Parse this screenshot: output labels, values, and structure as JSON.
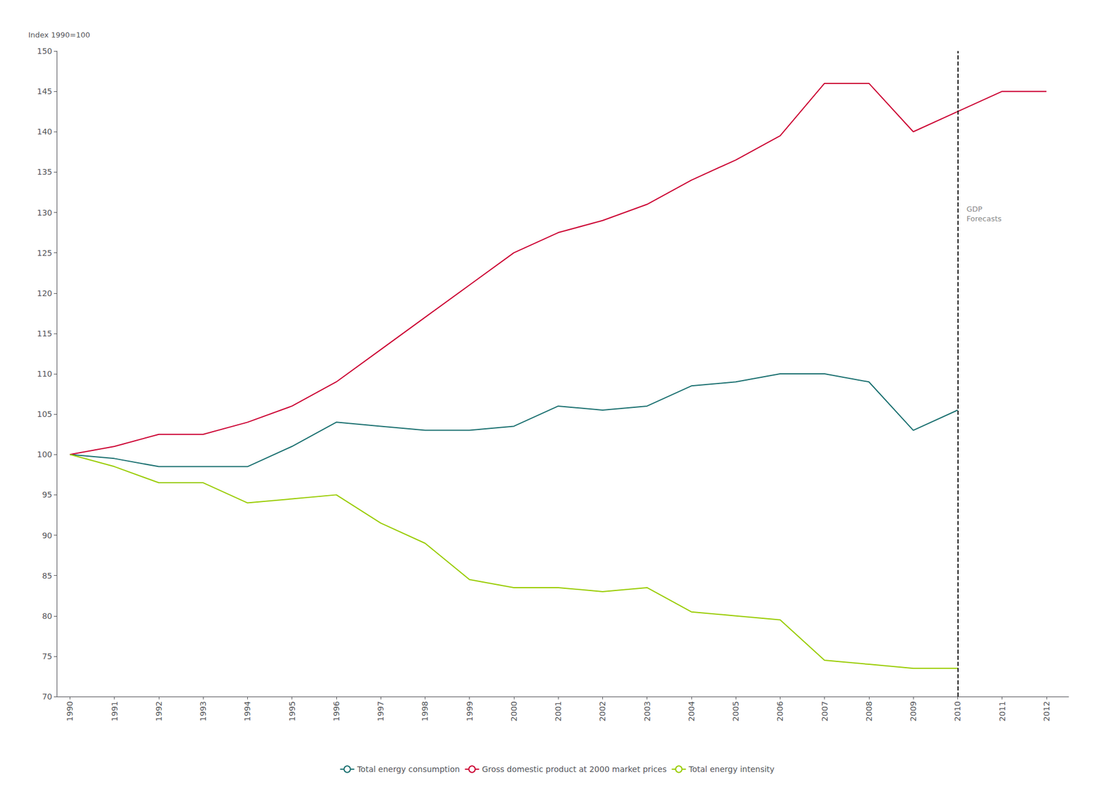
{
  "chart_data": {
    "type": "line",
    "y_label": "Index 1990=100",
    "x": [
      1990,
      1991,
      1992,
      1993,
      1994,
      1995,
      1996,
      1997,
      1998,
      1999,
      2000,
      2001,
      2002,
      2003,
      2004,
      2005,
      2006,
      2007,
      2008,
      2009,
      2010,
      2011,
      2012
    ],
    "series": [
      {
        "name": "Total energy consumption",
        "color": "#1a7070",
        "values": [
          100,
          99.5,
          98.5,
          98.5,
          98.5,
          101,
          104,
          103.5,
          103,
          103,
          103.5,
          106,
          105.5,
          106,
          108.5,
          109,
          110,
          110,
          109,
          103,
          105.5,
          null,
          null
        ]
      },
      {
        "name": "Gross domestic product at 2000 market prices",
        "color": "#cc0033",
        "values": [
          100,
          101,
          102.5,
          102.5,
          104,
          106,
          109,
          113,
          117,
          121,
          125,
          127.5,
          129,
          131,
          134,
          136.5,
          139.5,
          146,
          146,
          140,
          142.5,
          145,
          145
        ]
      },
      {
        "name": "Total energy intensity",
        "color": "#99cc00",
        "values": [
          100,
          98.5,
          96.5,
          96.5,
          94,
          94.5,
          95,
          91.5,
          89,
          84.5,
          83.5,
          83.5,
          83,
          83.5,
          80.5,
          80,
          79.5,
          74.5,
          74,
          73.5,
          73.5,
          null,
          null
        ]
      }
    ],
    "xlim": [
      1989.7,
      2012.5
    ],
    "xticks": [
      1990,
      1991,
      1992,
      1993,
      1994,
      1995,
      1996,
      1997,
      1998,
      1999,
      2000,
      2001,
      2002,
      2003,
      2004,
      2005,
      2006,
      2007,
      2008,
      2009,
      2010,
      2011,
      2012
    ],
    "ylim": [
      70,
      150
    ],
    "yticks": [
      70,
      75,
      80,
      85,
      90,
      95,
      100,
      105,
      110,
      115,
      120,
      125,
      130,
      135,
      140,
      145,
      150
    ],
    "grid": false,
    "legend": "bottom",
    "vlines": [
      {
        "x": 2010,
        "color": "#000000",
        "line_style": "dashed"
      }
    ],
    "annotations": [
      {
        "text": "GDP\nForecasts",
        "x": 2010.2,
        "y": 131,
        "color": "#888888"
      }
    ]
  }
}
